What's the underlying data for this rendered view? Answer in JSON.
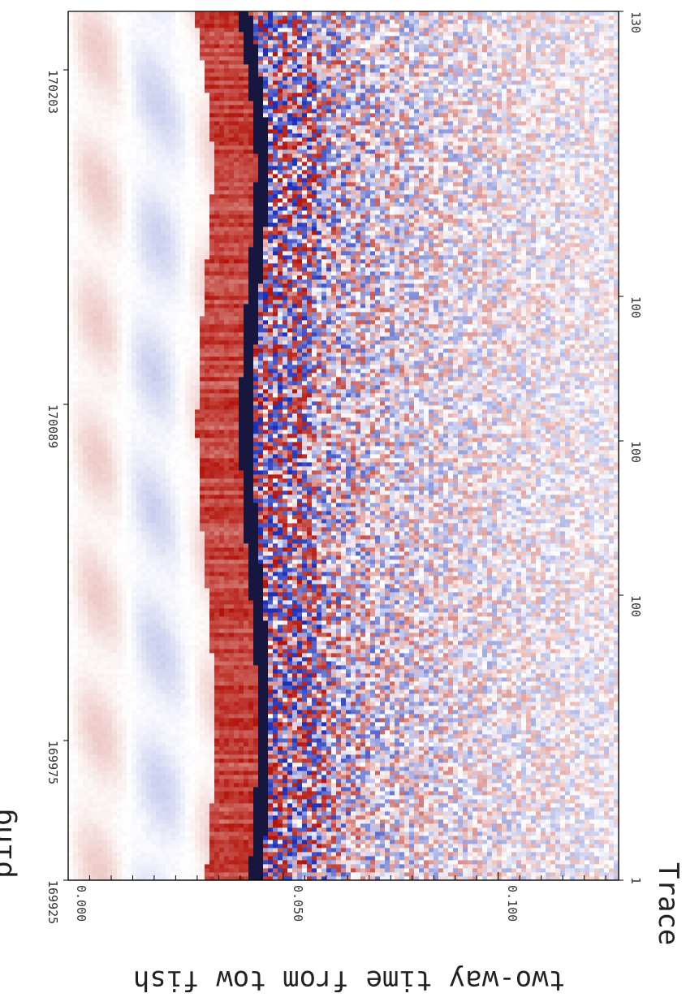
{
  "chart_data": {
    "type": "heatmap",
    "orientation": "rotated-90-clockwise",
    "title": "ping",
    "ylabel": "two-way time from tow fish",
    "xlabel": "Trace",
    "time_axis": {
      "ticks": [
        "0.000",
        "0.050",
        "0.100"
      ],
      "range": [
        0.0,
        0.128
      ],
      "seafloor_time": 0.044
    },
    "ping_axis": {
      "ticks": [
        "169925",
        "169975",
        "170089",
        "170203"
      ],
      "range": [
        169925,
        170260
      ]
    },
    "trace_axis": {
      "ticks": [
        "1",
        "100",
        "100",
        "100",
        "130"
      ],
      "range": [
        1,
        400
      ]
    },
    "colormap": {
      "negative": "#1b2fb8",
      "zero": "#ffffff",
      "positive": "#b3150c",
      "peak": "#0a0a35"
    },
    "grid": false,
    "legend": "none"
  }
}
